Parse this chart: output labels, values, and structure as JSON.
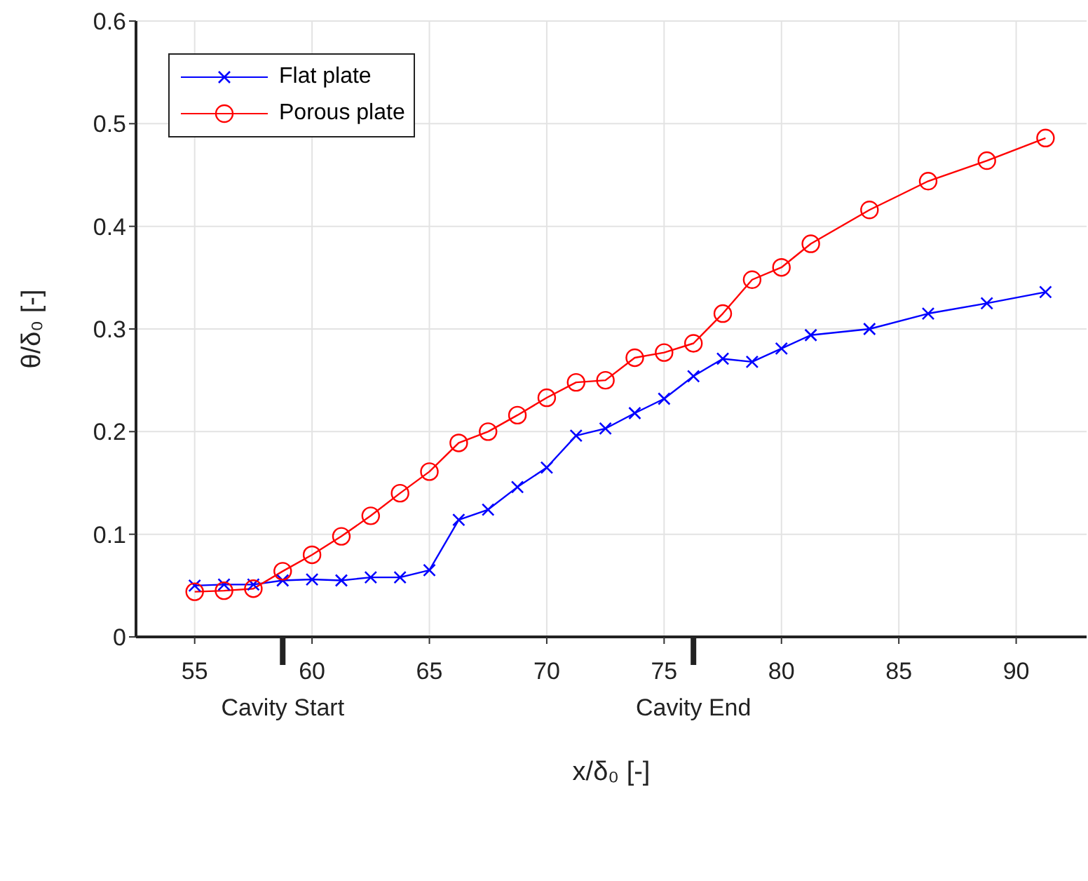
{
  "chart_data": {
    "type": "line",
    "xlabel": "x/δ₀ [-]",
    "ylabel": "θ/δ₀ [-]",
    "x": [
      55,
      56.25,
      57.5,
      58.75,
      60,
      61.25,
      62.5,
      63.75,
      65,
      66.25,
      67.5,
      68.75,
      70,
      71.25,
      72.5,
      73.75,
      75,
      76.25,
      77.5,
      78.75,
      80,
      81.25,
      83.75,
      86.25,
      88.75,
      91.25
    ],
    "series": [
      {
        "name": "Flat plate",
        "color": "#0000ff",
        "marker": "cross",
        "values": [
          0.05,
          0.051,
          0.051,
          0.055,
          0.056,
          0.055,
          0.058,
          0.058,
          0.065,
          0.114,
          0.124,
          0.146,
          0.165,
          0.196,
          0.203,
          0.218,
          0.232,
          0.254,
          0.271,
          0.268,
          0.281,
          0.294,
          0.3,
          0.315,
          0.325,
          0.336
        ]
      },
      {
        "name": "Porous plate",
        "color": "#ff0000",
        "marker": "circle",
        "values": [
          0.044,
          0.045,
          0.047,
          0.064,
          0.08,
          0.098,
          0.118,
          0.14,
          0.161,
          0.189,
          0.2,
          0.216,
          0.233,
          0.248,
          0.25,
          0.272,
          0.277,
          0.286,
          0.315,
          0.348,
          0.36,
          0.383,
          0.416,
          0.444,
          0.464,
          0.486
        ]
      }
    ],
    "xlim": [
      52.5,
      93
    ],
    "xticks": [
      55,
      60,
      65,
      70,
      75,
      80,
      85,
      90
    ],
    "ref_lines": [
      {
        "axis": "x",
        "value": 58.75,
        "label": "Cavity Start",
        "color": "#222222"
      },
      {
        "axis": "x",
        "value": 76.25,
        "label": "Cavity End",
        "color": "#222222"
      }
    ],
    "ylim": [
      0,
      0.6
    ],
    "yticks": [
      0,
      0.1,
      0.2,
      0.3,
      0.4,
      0.5,
      0.6
    ],
    "grid": true,
    "legend": "top left",
    "line_style": "solid"
  }
}
